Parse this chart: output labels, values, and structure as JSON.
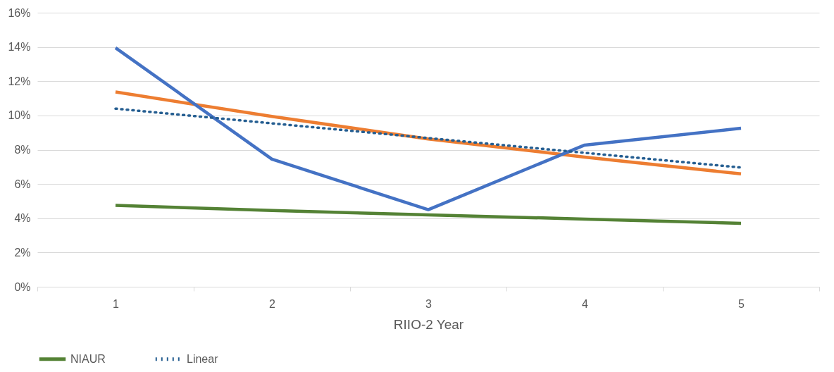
{
  "chart_data": {
    "type": "line",
    "xlabel": "RIIO-2 Year",
    "categories": [
      "1",
      "2",
      "3",
      "4",
      "5"
    ],
    "series": [
      {
        "name": "NIAUR",
        "color": "#548235",
        "values": [
          4.75,
          4.45,
          4.2,
          3.95,
          3.7
        ]
      },
      {
        "color": "#ed7d31",
        "values": [
          11.37,
          9.94,
          8.63,
          7.57,
          6.59
        ]
      },
      {
        "color": "#4472c4",
        "values": [
          13.95,
          7.45,
          4.5,
          8.27,
          9.25
        ]
      },
      {
        "name": "Linear",
        "color": "#255e91",
        "line_style": "dotted",
        "values": [
          10.4,
          9.54,
          8.68,
          7.82,
          6.96
        ]
      }
    ],
    "ylim": [
      0,
      16
    ],
    "yticks": [
      {
        "value": 0,
        "label": "0%"
      },
      {
        "value": 2,
        "label": "2%"
      },
      {
        "value": 4,
        "label": "4%"
      },
      {
        "value": 6,
        "label": "6%"
      },
      {
        "value": 8,
        "label": "8%"
      },
      {
        "value": 10,
        "label": "10%"
      },
      {
        "value": 12,
        "label": "12%"
      },
      {
        "value": 14,
        "label": "14%"
      },
      {
        "value": 16,
        "label": "16%"
      }
    ],
    "grid": "y",
    "legend": "bottom",
    "marker": "none"
  }
}
